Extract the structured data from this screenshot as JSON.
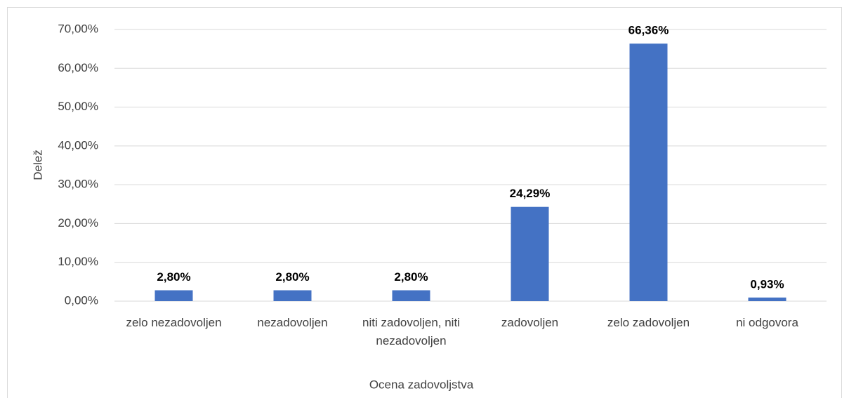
{
  "chart_data": {
    "type": "bar",
    "x_label": "Ocena zadovoljstva",
    "y_label": "Delež",
    "categories": [
      "zelo nezadovoljen",
      "nezadovoljen",
      "niti zadovoljen, niti nezadovoljen",
      "zadovoljen",
      "zelo zadovoljen",
      "ni odgovora"
    ],
    "values": [
      2.8,
      2.8,
      2.8,
      24.29,
      66.36,
      0.93
    ],
    "value_labels": [
      "2,80%",
      "2,80%",
      "2,80%",
      "24,29%",
      "66,36%",
      "0,93%"
    ],
    "color": "#4472c4",
    "ylim": [
      0,
      70
    ],
    "yticks": [
      {
        "value": 0,
        "label": "0,00%"
      },
      {
        "value": 10,
        "label": "10,00%"
      },
      {
        "value": 20,
        "label": "20,00%"
      },
      {
        "value": 30,
        "label": "30,00%"
      },
      {
        "value": 40,
        "label": "40,00%"
      },
      {
        "value": 50,
        "label": "50,00%"
      },
      {
        "value": 60,
        "label": "60,00%"
      },
      {
        "value": 70,
        "label": "70,00%"
      }
    ],
    "grid": true
  }
}
